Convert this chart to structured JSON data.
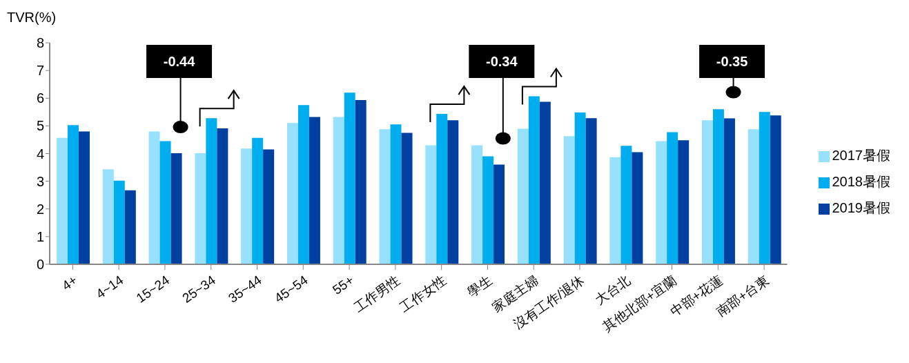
{
  "chart_data": {
    "type": "bar",
    "ylabel": "TVR(%)",
    "categories": [
      "4+",
      "4~14",
      "15~24",
      "25~34",
      "35~44",
      "45~54",
      "55+",
      "工作男性",
      "工作女性",
      "學生",
      "家庭主婦",
      "沒有工作/退休",
      "大台北",
      "其他北部+宜蘭",
      "中部+花蓮",
      "南部+台東"
    ],
    "series": [
      {
        "name": "2017暑假",
        "color": "#97e1fe",
        "values": [
          4.57,
          3.43,
          4.8,
          4.01,
          4.18,
          5.1,
          5.32,
          4.88,
          4.3,
          4.3,
          4.9,
          4.63,
          3.87,
          4.45,
          5.2,
          4.88
        ]
      },
      {
        "name": "2018暑假",
        "color": "#00aeef",
        "values": [
          5.03,
          3.02,
          4.45,
          5.28,
          4.57,
          5.75,
          6.2,
          5.05,
          5.43,
          3.9,
          6.07,
          5.48,
          4.28,
          4.77,
          5.6,
          5.5
        ]
      },
      {
        "name": "2019暑假",
        "color": "#0040a0",
        "values": [
          4.8,
          2.67,
          4.01,
          4.91,
          4.15,
          5.32,
          5.93,
          4.75,
          5.2,
          3.6,
          5.87,
          5.28,
          4.05,
          4.48,
          5.27,
          5.38
        ]
      }
    ],
    "ylim": [
      0,
      8
    ],
    "yticks": [
      0,
      1,
      2,
      3,
      4,
      5,
      6,
      7,
      8
    ],
    "grid": false,
    "legend": "right",
    "annotations": [
      "-0.44",
      "-0.34",
      "-0.35"
    ]
  }
}
